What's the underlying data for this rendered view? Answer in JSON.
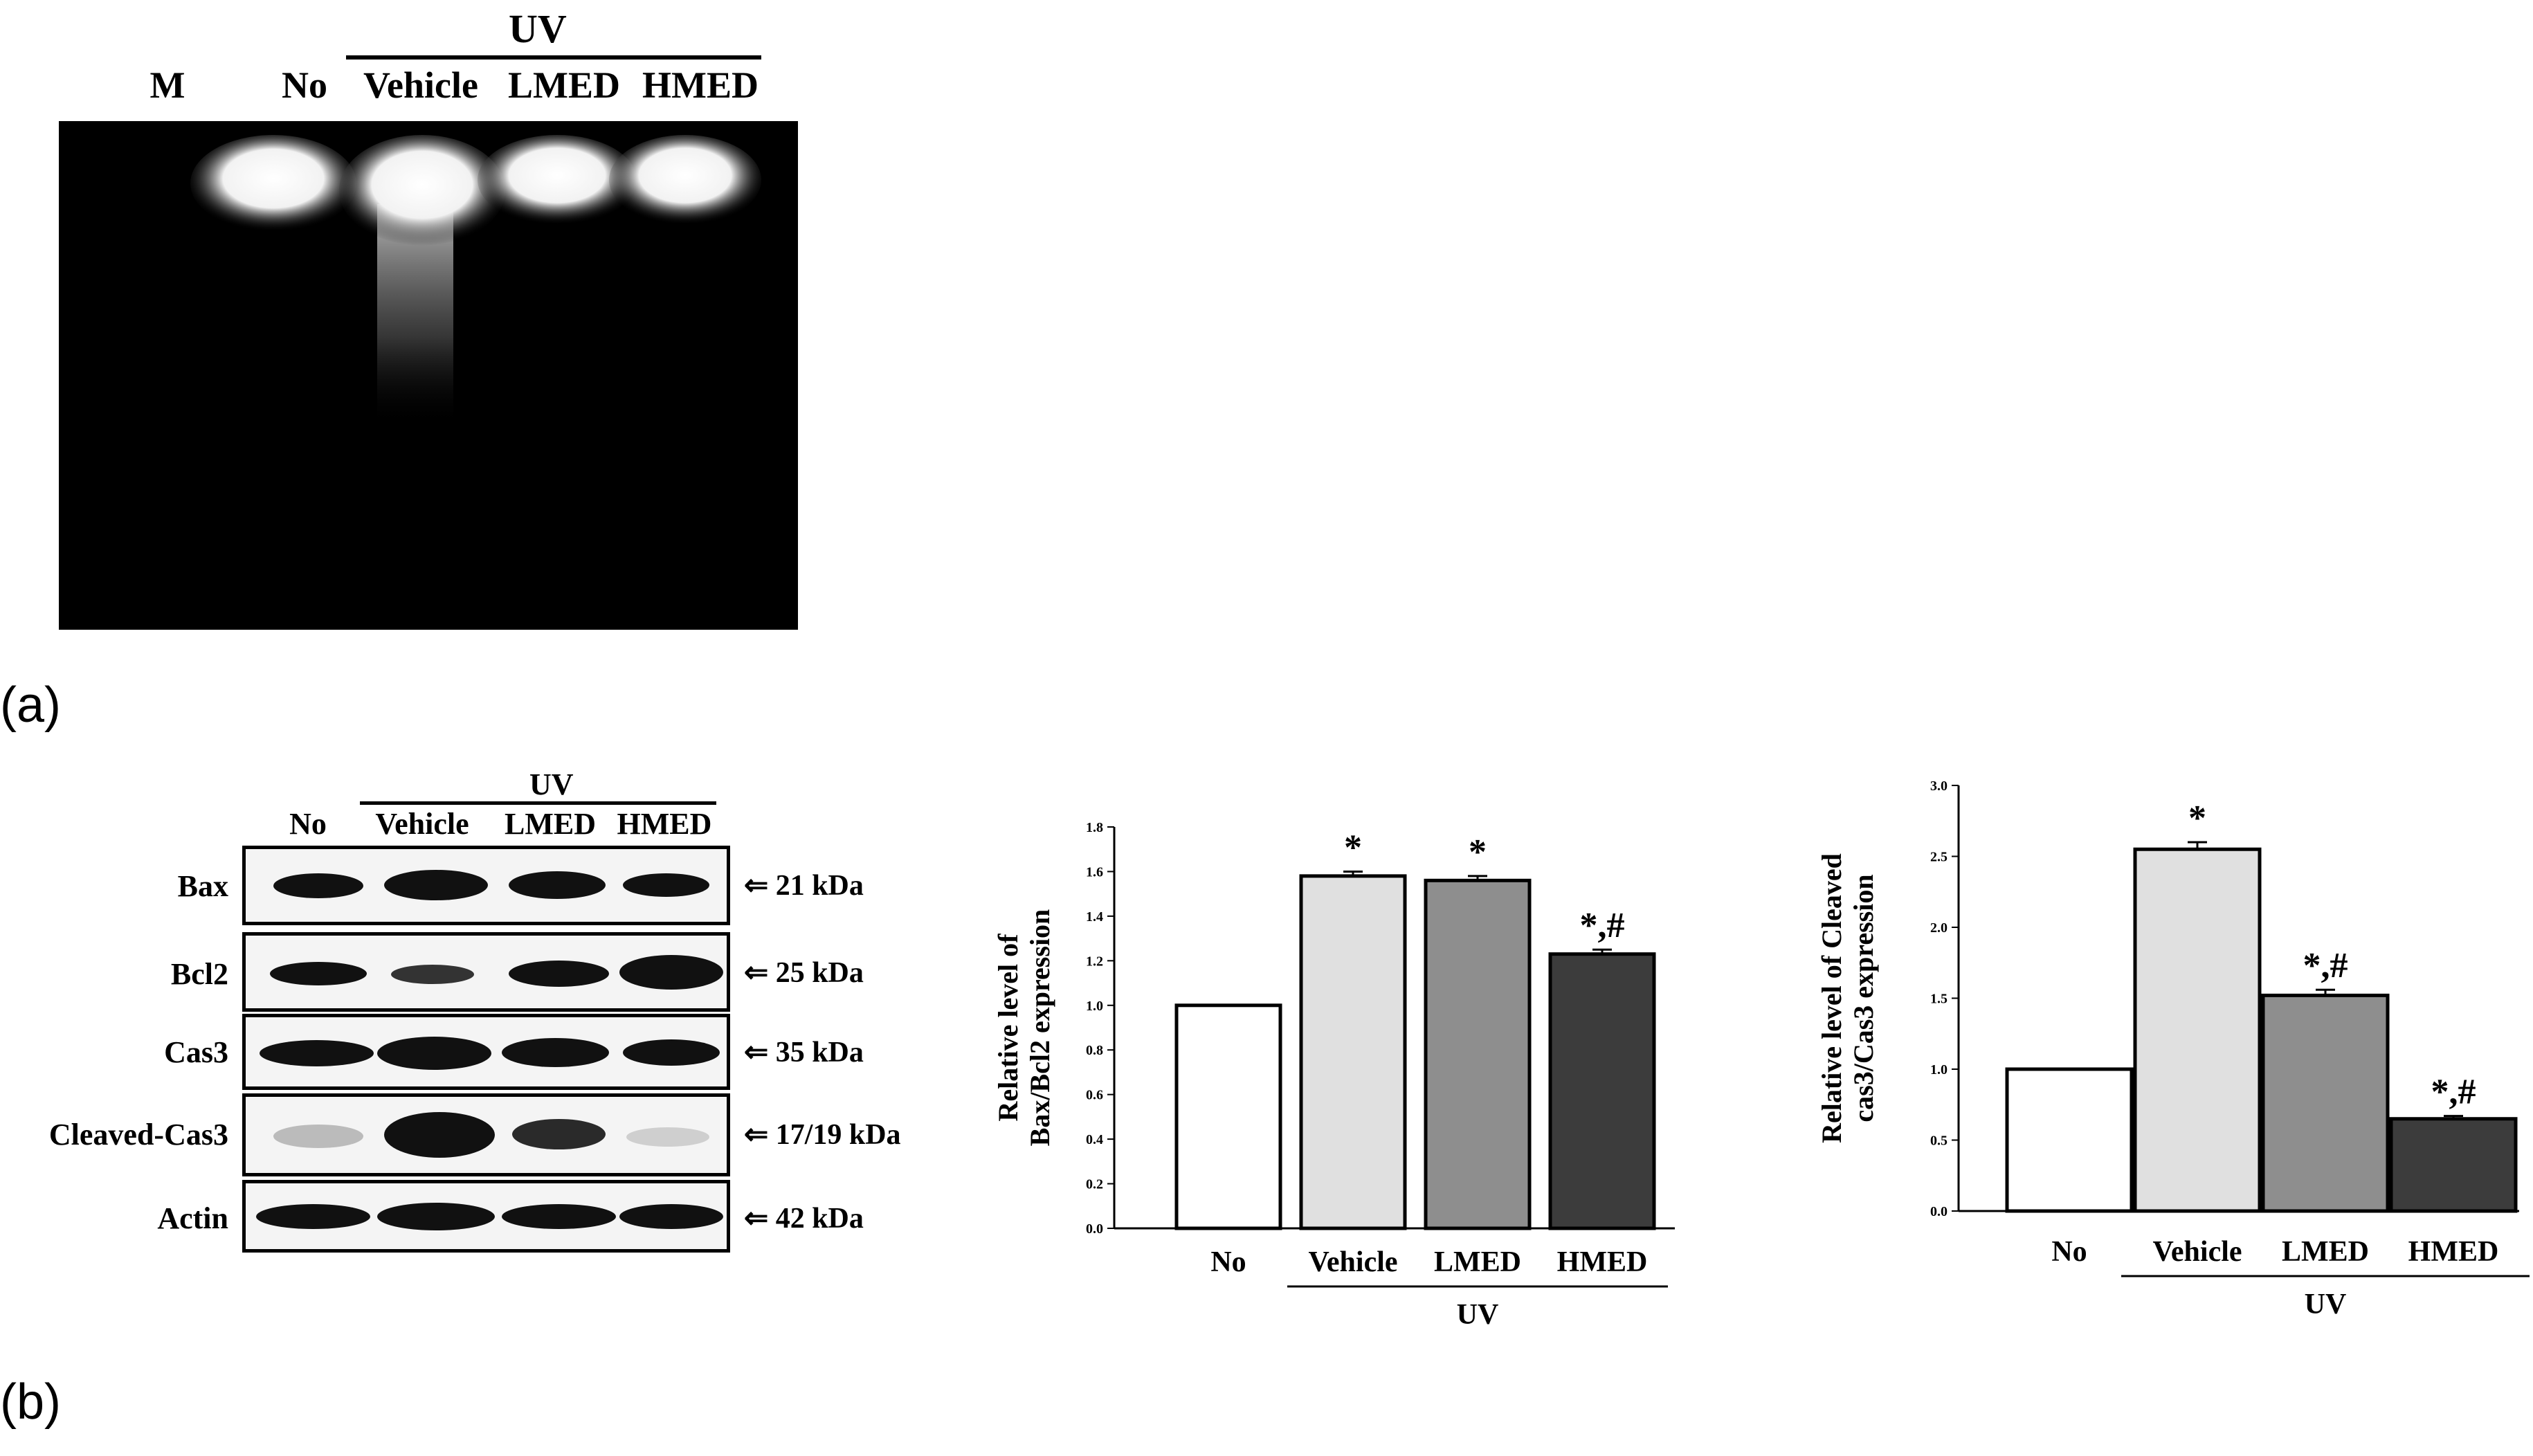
{
  "panel_a": {
    "letter": "(a)",
    "uv_label": "UV",
    "lanes": [
      "M",
      "No",
      "Vehicle",
      "LMED",
      "HMED"
    ]
  },
  "panel_b": {
    "letter": "(b)",
    "uv_label": "UV",
    "lanes": [
      "No",
      "Vehicle",
      "LMED",
      "HMED"
    ],
    "proteins": [
      {
        "name": "Bax",
        "kda": "21 kDa"
      },
      {
        "name": "Bcl2",
        "kda": "25 kDa"
      },
      {
        "name": "Cas3",
        "kda": "35 kDa"
      },
      {
        "name": "Cleaved-Cas3",
        "kda": "17/19 kDa"
      },
      {
        "name": "Actin",
        "kda": "42 kDa"
      }
    ]
  },
  "chart_data": [
    {
      "type": "bar",
      "categories": [
        "No",
        "Vehicle",
        "LMED",
        "HMED"
      ],
      "values": [
        1.0,
        1.58,
        1.56,
        1.23
      ],
      "errors": [
        0,
        0.02,
        0.02,
        0.02
      ],
      "significance": [
        "",
        "*",
        "*",
        "*,#"
      ],
      "bar_colors": [
        "#ffffff",
        "#e0e0e0",
        "#8e8e8e",
        "#3c3c3c"
      ],
      "ylabel": "Relative level of Bax/Bcl2 expression",
      "ylabel_lines": [
        "Relative level of",
        "Bax/Bcl2 expression"
      ],
      "ylim": [
        0,
        1.8
      ],
      "yticks": [
        "0.0",
        "0.2",
        "0.4",
        "0.6",
        "0.8",
        "1.0",
        "1.2",
        "1.4",
        "1.6",
        "1.8"
      ],
      "group_label": "UV"
    },
    {
      "type": "bar",
      "categories": [
        "No",
        "Vehicle",
        "LMED",
        "HMED"
      ],
      "values": [
        1.0,
        2.55,
        1.52,
        0.65
      ],
      "errors": [
        0,
        0.05,
        0.04,
        0.02
      ],
      "significance": [
        "",
        "*",
        "*,#",
        "*,#"
      ],
      "bar_colors": [
        "#ffffff",
        "#e0e0e0",
        "#8e8e8e",
        "#3c3c3c"
      ],
      "ylabel": "Relative level of Cleaved cas3/Cas3 expression",
      "ylabel_lines": [
        "Relative level of Cleaved",
        "cas3/Cas3 expression"
      ],
      "ylim": [
        0,
        3.0
      ],
      "yticks": [
        "0.0",
        "0.5",
        "1.0",
        "1.5",
        "2.0",
        "2.5",
        "3.0"
      ],
      "group_label": "UV"
    }
  ]
}
